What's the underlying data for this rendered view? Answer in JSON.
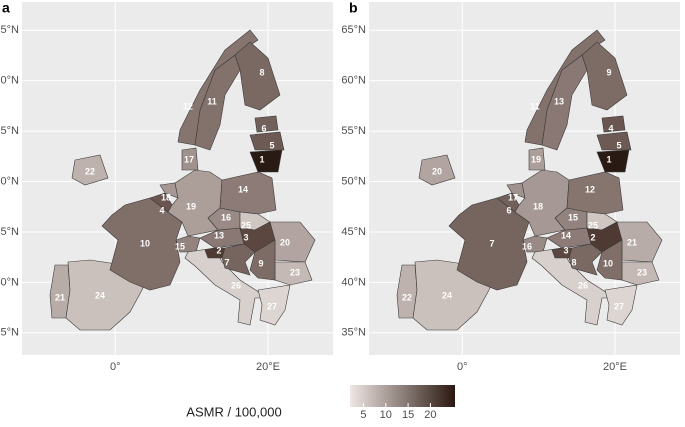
{
  "chart_data": [
    {
      "type": "map",
      "panel": "a",
      "xlim": [
        -12.2,
        28.5
      ],
      "ylim": [
        32.8,
        67.8
      ],
      "xticks": [
        {
          "value": 0,
          "label": "0°"
        },
        {
          "value": 20,
          "label": "20°E"
        }
      ],
      "yticks": [
        {
          "value": 35,
          "label": "35°N"
        },
        {
          "value": 40,
          "label": "40°N"
        },
        {
          "value": 45,
          "label": "45°N"
        },
        {
          "value": 50,
          "label": "50°N"
        },
        {
          "value": 55,
          "label": "55°N"
        },
        {
          "value": 60,
          "label": "60°N"
        },
        {
          "value": 65,
          "label": "65°N"
        }
      ],
      "regions": [
        {
          "label": 21,
          "color": "#b8aca8"
        },
        {
          "label": 24,
          "color": "#cac0bc"
        },
        {
          "label": 10,
          "color": "#806e69"
        },
        {
          "label": 4,
          "color": "#6a5550"
        },
        {
          "label": 18,
          "color": "#a69894"
        },
        {
          "label": 22,
          "color": "#beb2ae"
        },
        {
          "label": 19,
          "color": "#ac9f9a"
        },
        {
          "label": 17,
          "color": "#a0928d"
        },
        {
          "label": 15,
          "color": "#93837e"
        },
        {
          "label": 13,
          "color": "#897873"
        },
        {
          "label": 26,
          "color": "#d8d0cc"
        },
        {
          "label": 16,
          "color": "#9a8a86"
        },
        {
          "label": 14,
          "color": "#8c7b76"
        },
        {
          "label": 25,
          "color": "#d0c6c2"
        },
        {
          "label": 3,
          "color": "#5c4740"
        },
        {
          "label": 2,
          "color": "#4e3a33"
        },
        {
          "label": 7,
          "color": "#76645e"
        },
        {
          "label": 20,
          "color": "#b2a5a1"
        },
        {
          "label": 23,
          "color": "#c4b9b5"
        },
        {
          "label": 9,
          "color": "#7d6b66"
        },
        {
          "label": 27,
          "color": "#ddd5d1"
        },
        {
          "label": 11,
          "color": "#83716c"
        },
        {
          "label": 12,
          "color": "#86756f"
        },
        {
          "label": 8,
          "color": "#7a6863"
        },
        {
          "label": 6,
          "color": "#72605a"
        },
        {
          "label": 5,
          "color": "#6e5a55"
        },
        {
          "label": 1,
          "color": "#2a1a14"
        }
      ]
    },
    {
      "type": "map",
      "panel": "b",
      "xlim": [
        -12.2,
        28.5
      ],
      "ylim": [
        32.8,
        67.8
      ],
      "xticks": [
        {
          "value": 0,
          "label": "0°"
        },
        {
          "value": 20,
          "label": "20°E"
        }
      ],
      "yticks": [
        {
          "value": 35,
          "label": "35°N"
        },
        {
          "value": 40,
          "label": "40°N"
        },
        {
          "value": 45,
          "label": "45°N"
        },
        {
          "value": 50,
          "label": "50°N"
        },
        {
          "value": 55,
          "label": "55°N"
        },
        {
          "value": 60,
          "label": "60°N"
        },
        {
          "value": 65,
          "label": "65°N"
        }
      ],
      "regions": [
        {
          "label": 22,
          "color": "#beb2ae"
        },
        {
          "label": 24,
          "color": "#cac0bc"
        },
        {
          "label": 7,
          "color": "#76645e"
        },
        {
          "label": 6,
          "color": "#72605a"
        },
        {
          "label": 17,
          "color": "#a0928d"
        },
        {
          "label": 20,
          "color": "#b2a5a1"
        },
        {
          "label": 18,
          "color": "#a69894"
        },
        {
          "label": 19,
          "color": "#ac9f9a"
        },
        {
          "label": 16,
          "color": "#9a8a86"
        },
        {
          "label": 14,
          "color": "#8c7b76"
        },
        {
          "label": 26,
          "color": "#d8d0cc"
        },
        {
          "label": 15,
          "color": "#93837e"
        },
        {
          "label": 12,
          "color": "#86756f"
        },
        {
          "label": 25,
          "color": "#d0c6c2"
        },
        {
          "label": 2,
          "color": "#4e3a33"
        },
        {
          "label": 3,
          "color": "#5c4740"
        },
        {
          "label": 8,
          "color": "#7a6863"
        },
        {
          "label": 21,
          "color": "#b8aca8"
        },
        {
          "label": 23,
          "color": "#c4b9b5"
        },
        {
          "label": 10,
          "color": "#806e69"
        },
        {
          "label": 27,
          "color": "#ddd5d1"
        },
        {
          "label": 13,
          "color": "#897873"
        },
        {
          "label": 11,
          "color": "#83716c"
        },
        {
          "label": 9,
          "color": "#7d6b66"
        },
        {
          "label": 4,
          "color": "#6a5550"
        },
        {
          "label": 5,
          "color": "#6e5a55"
        },
        {
          "label": 1,
          "color": "#2a1a14"
        }
      ]
    }
  ],
  "legend": {
    "title": "ASMR / 100,000",
    "colors": [
      "#efe7e4",
      "#2a1710"
    ],
    "lim": [
      2,
      25.5
    ],
    "ticks": [
      5,
      10,
      15,
      20
    ]
  }
}
